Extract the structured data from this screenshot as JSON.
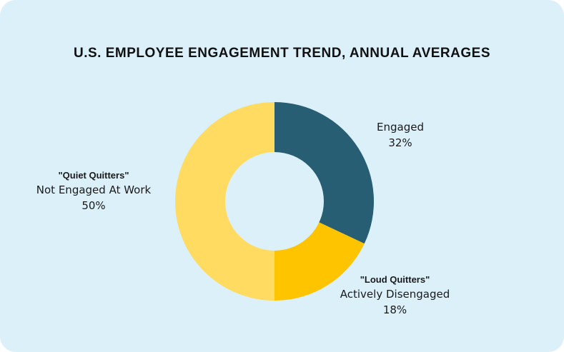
{
  "title": "U.S. EMPLOYEE ENGAGEMENT TREND, ANNUAL AVERAGES",
  "chart_data": {
    "type": "pie",
    "donut": true,
    "title": "U.S. EMPLOYEE ENGAGEMENT TREND, ANNUAL AVERAGES",
    "slices": [
      {
        "label": "Engaged",
        "tag": "",
        "value": 32,
        "value_label": "32%",
        "color": "#275e73"
      },
      {
        "label": "Actively Disengaged",
        "tag": "\"Loud Quitters\"",
        "value": 18,
        "value_label": "18%",
        "color": "#ffc400"
      },
      {
        "label": "Not Engaged At Work",
        "tag": "\"Quiet Quitters\"",
        "value": 50,
        "value_label": "50%",
        "color": "#ffdb62"
      }
    ],
    "start": "12 o'clock",
    "direction": "clockwise",
    "legend": "none"
  },
  "colors": {
    "background": "#dcf0fa",
    "hole": "#dcf0fa"
  }
}
